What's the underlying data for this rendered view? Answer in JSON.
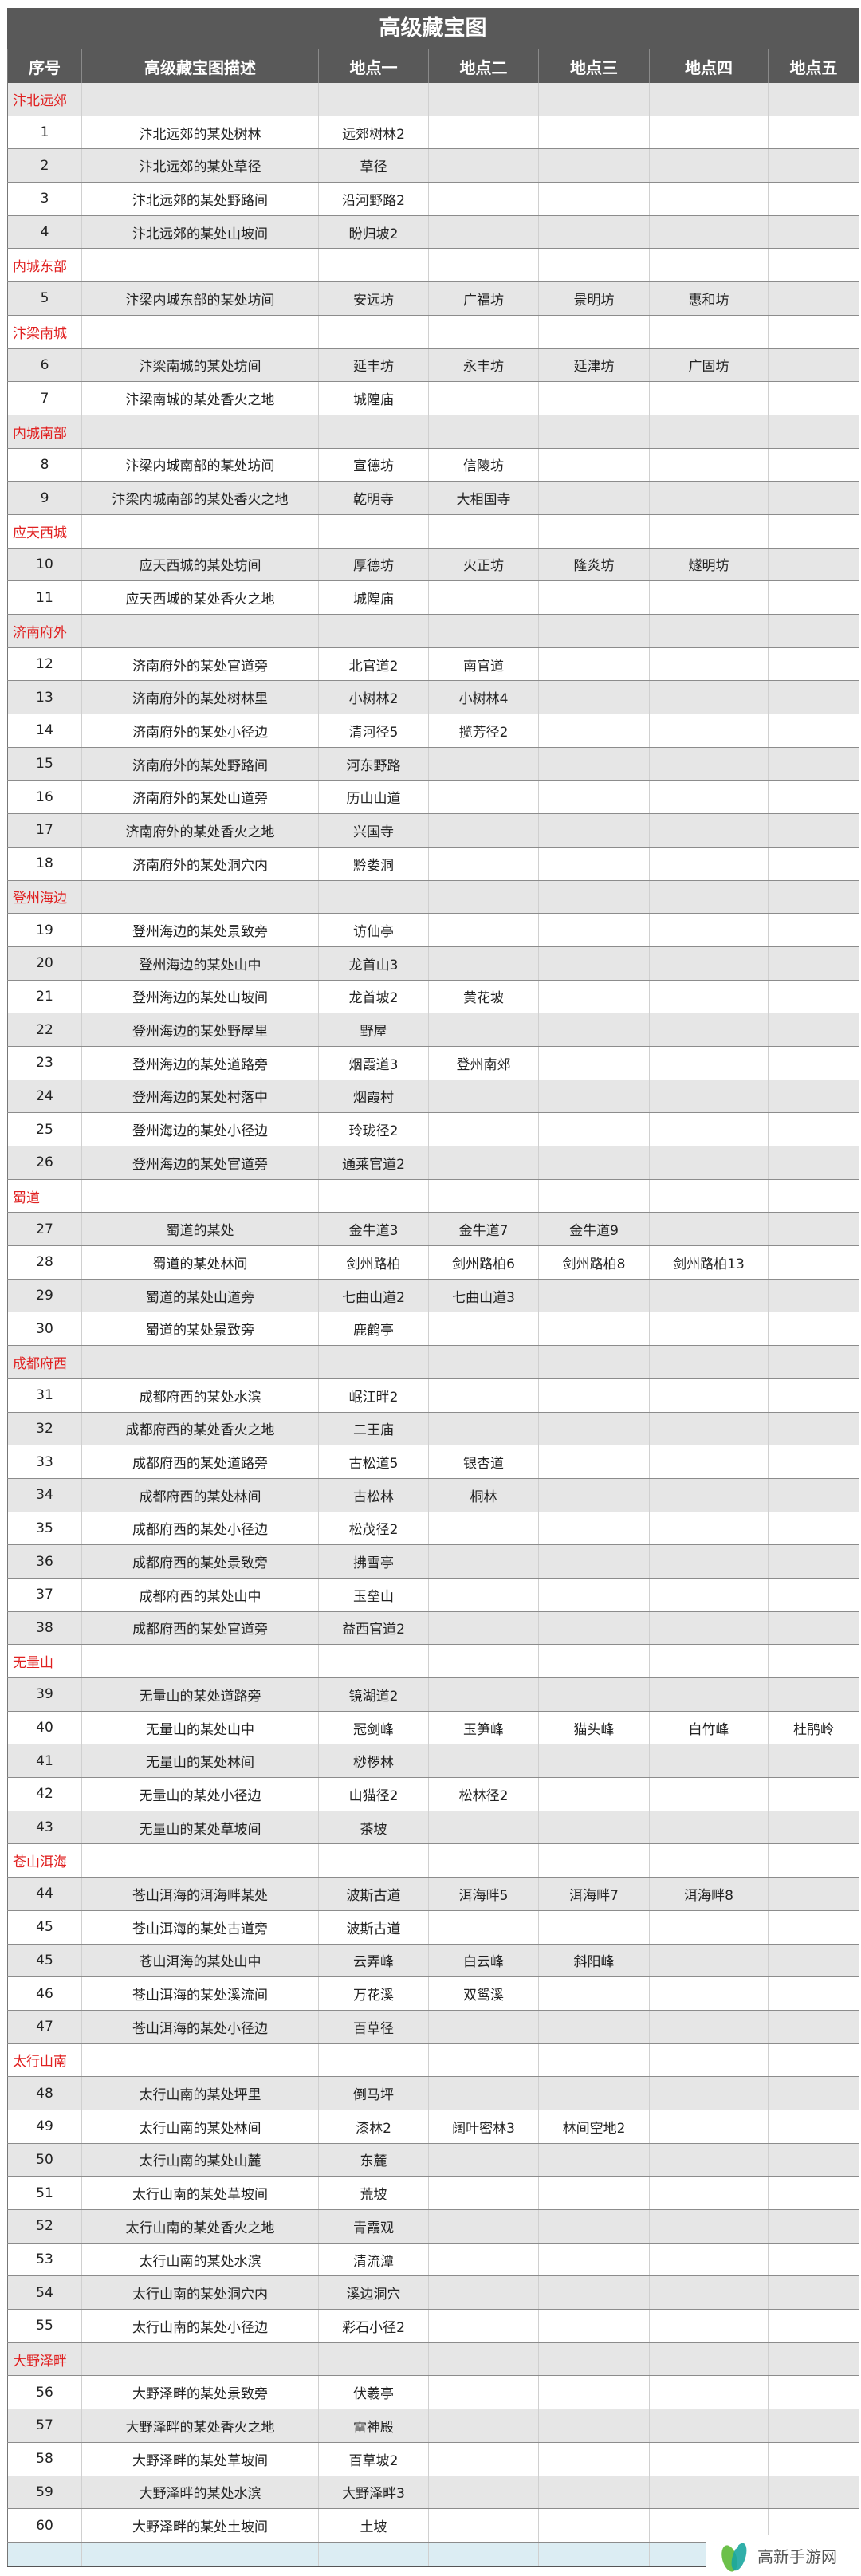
{
  "title": "高级藏宝图",
  "headers": [
    "序号",
    "高级藏宝图描述",
    "地点一",
    "地点二",
    "地点三",
    "地点四",
    "地点五"
  ],
  "colors": {
    "header_bg": "#595959",
    "section_text": "#e02020",
    "alt_row": "#e6e6e6",
    "footer_row": "#dcedf3",
    "logo_green": "#6cc04a",
    "logo_teal": "#1aa6a0"
  },
  "sections": [
    {
      "name": "汴北远郊",
      "rows": [
        [
          "1",
          "汴北远郊的某处树林",
          [
            "远郊树林2"
          ]
        ],
        [
          "2",
          "汴北远郊的某处草径",
          [
            "草径"
          ]
        ],
        [
          "3",
          "汴北远郊的某处野路间",
          [
            "沿河野路2"
          ]
        ],
        [
          "4",
          "汴北远郊的某处山坡间",
          [
            "盼归坡2"
          ]
        ]
      ]
    },
    {
      "name": "内城东部",
      "rows": [
        [
          "5",
          "汴梁内城东部的某处坊间",
          [
            "安远坊",
            "广福坊",
            "景明坊",
            "惠和坊"
          ]
        ]
      ]
    },
    {
      "name": "汴梁南城",
      "rows": [
        [
          "6",
          "汴梁南城的某处坊间",
          [
            "延丰坊",
            "永丰坊",
            "延津坊",
            "广固坊"
          ]
        ],
        [
          "7",
          "汴梁南城的某处香火之地",
          [
            "城隍庙"
          ]
        ]
      ]
    },
    {
      "name": "内城南部",
      "rows": [
        [
          "8",
          "汴梁内城南部的某处坊间",
          [
            "宣德坊",
            "信陵坊"
          ]
        ],
        [
          "9",
          "汴梁内城南部的某处香火之地",
          [
            "乾明寺",
            "大相国寺"
          ]
        ]
      ]
    },
    {
      "name": "应天西城",
      "rows": [
        [
          "10",
          "应天西城的某处坊间",
          [
            "厚德坊",
            "火正坊",
            "隆炎坊",
            "燧明坊"
          ]
        ],
        [
          "11",
          "应天西城的某处香火之地",
          [
            "城隍庙"
          ]
        ]
      ]
    },
    {
      "name": "济南府外",
      "rows": [
        [
          "12",
          "济南府外的某处官道旁",
          [
            "北官道2",
            "南官道"
          ]
        ],
        [
          "13",
          "济南府外的某处树林里",
          [
            "小树林2",
            "小树林4"
          ]
        ],
        [
          "14",
          "济南府外的某处小径边",
          [
            "清河径5",
            "揽芳径2"
          ]
        ],
        [
          "15",
          "济南府外的某处野路间",
          [
            "河东野路"
          ]
        ],
        [
          "16",
          "济南府外的某处山道旁",
          [
            "历山山道"
          ]
        ],
        [
          "17",
          "济南府外的某处香火之地",
          [
            "兴国寺"
          ]
        ],
        [
          "18",
          "济南府外的某处洞穴内",
          [
            "黔娄洞"
          ]
        ]
      ]
    },
    {
      "name": "登州海边",
      "rows": [
        [
          "19",
          "登州海边的某处景致旁",
          [
            "访仙亭"
          ]
        ],
        [
          "20",
          "登州海边的某处山中",
          [
            "龙首山3"
          ]
        ],
        [
          "21",
          "登州海边的某处山坡间",
          [
            "龙首坡2",
            "黄花坡"
          ]
        ],
        [
          "22",
          "登州海边的某处野屋里",
          [
            "野屋"
          ]
        ],
        [
          "23",
          "登州海边的某处道路旁",
          [
            "烟霞道3",
            "登州南郊"
          ]
        ],
        [
          "24",
          "登州海边的某处村落中",
          [
            "烟霞村"
          ]
        ],
        [
          "25",
          "登州海边的某处小径边",
          [
            "玲珑径2"
          ]
        ],
        [
          "26",
          "登州海边的某处官道旁",
          [
            "通莱官道2"
          ]
        ]
      ]
    },
    {
      "name": "蜀道",
      "rows": [
        [
          "27",
          "蜀道的某处",
          [
            "金牛道3",
            "金牛道7",
            "金牛道9"
          ]
        ],
        [
          "28",
          "蜀道的某处林间",
          [
            "剑州路柏",
            "剑州路柏6",
            "剑州路柏8",
            "剑州路柏13"
          ]
        ],
        [
          "29",
          "蜀道的某处山道旁",
          [
            "七曲山道2",
            "七曲山道3"
          ]
        ],
        [
          "30",
          "蜀道的某处景致旁",
          [
            "鹿鹤亭"
          ]
        ]
      ]
    },
    {
      "name": "成都府西",
      "rows": [
        [
          "31",
          "成都府西的某处水滨",
          [
            "岷江畔2"
          ]
        ],
        [
          "32",
          "成都府西的某处香火之地",
          [
            "二王庙"
          ]
        ],
        [
          "33",
          "成都府西的某处道路旁",
          [
            "古松道5",
            "银杏道"
          ]
        ],
        [
          "34",
          "成都府西的某处林间",
          [
            "古松林",
            "桐林"
          ]
        ],
        [
          "35",
          "成都府西的某处小径边",
          [
            "松茂径2"
          ]
        ],
        [
          "36",
          "成都府西的某处景致旁",
          [
            "拂雪亭"
          ]
        ],
        [
          "37",
          "成都府西的某处山中",
          [
            "玉垒山"
          ]
        ],
        [
          "38",
          "成都府西的某处官道旁",
          [
            "益西官道2"
          ]
        ]
      ]
    },
    {
      "name": "无量山",
      "rows": [
        [
          "39",
          "无量山的某处道路旁",
          [
            "镜湖道2"
          ]
        ],
        [
          "40",
          "无量山的某处山中",
          [
            "冠剑峰",
            "玉笋峰",
            "猫头峰",
            "白竹峰",
            "杜鹃岭"
          ]
        ],
        [
          "41",
          "无量山的某处林间",
          [
            "桫椤林"
          ]
        ],
        [
          "42",
          "无量山的某处小径边",
          [
            "山猫径2",
            "松林径2"
          ]
        ],
        [
          "43",
          "无量山的某处草坡间",
          [
            "茶坡"
          ]
        ]
      ]
    },
    {
      "name": "苍山洱海",
      "rows": [
        [
          "44",
          "苍山洱海的洱海畔某处",
          [
            "波斯古道",
            "洱海畔5",
            "洱海畔7",
            "洱海畔8"
          ]
        ],
        [
          "45",
          "苍山洱海的某处古道旁",
          [
            "波斯古道"
          ]
        ],
        [
          "45",
          "苍山洱海的某处山中",
          [
            "云弄峰",
            "白云峰",
            "斜阳峰"
          ]
        ],
        [
          "46",
          "苍山洱海的某处溪流间",
          [
            "万花溪",
            "双鸳溪"
          ]
        ],
        [
          "47",
          "苍山洱海的某处小径边",
          [
            "百草径"
          ]
        ]
      ]
    },
    {
      "name": "太行山南",
      "rows": [
        [
          "48",
          "太行山南的某处坪里",
          [
            "倒马坪"
          ]
        ],
        [
          "49",
          "太行山南的某处林间",
          [
            "漆林2",
            "阔叶密林3",
            "林间空地2"
          ]
        ],
        [
          "50",
          "太行山南的某处山麓",
          [
            "东麓"
          ]
        ],
        [
          "51",
          "太行山南的某处草坡间",
          [
            "荒坡"
          ]
        ],
        [
          "52",
          "太行山南的某处香火之地",
          [
            "青霞观"
          ]
        ],
        [
          "53",
          "太行山南的某处水滨",
          [
            "清流潭"
          ]
        ],
        [
          "54",
          "太行山南的某处洞穴内",
          [
            "溪边洞穴"
          ]
        ],
        [
          "55",
          "太行山南的某处小径边",
          [
            "彩石小径2"
          ]
        ]
      ]
    },
    {
      "name": "大野泽畔",
      "rows": [
        [
          "56",
          "大野泽畔的某处景致旁",
          [
            "伏羲亭"
          ]
        ],
        [
          "57",
          "大野泽畔的某处香火之地",
          [
            "雷神殿"
          ]
        ],
        [
          "58",
          "大野泽畔的某处草坡间",
          [
            "百草坡2"
          ]
        ],
        [
          "59",
          "大野泽畔的某处水滨",
          [
            "大野泽畔3"
          ]
        ],
        [
          "60",
          "大野泽畔的某处土坡间",
          [
            "土坡"
          ]
        ]
      ]
    }
  ],
  "watermark": {
    "text": "高新手游网",
    "icon": "gaoxin-logo-icon"
  }
}
